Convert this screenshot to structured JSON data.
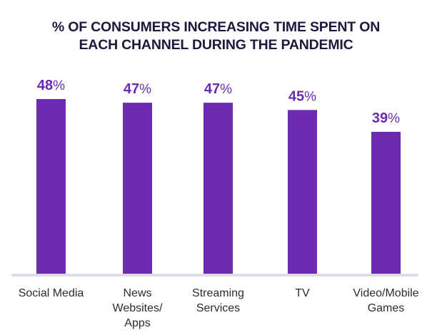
{
  "chart_data": {
    "type": "bar",
    "title": "% OF CONSUMERS INCREASING TIME SPENT ON EACH CHANNEL DURING THE PANDEMIC",
    "title_lines": [
      "% OF CONSUMERS INCREASING TIME SPENT ON",
      "EACH CHANNEL DURING THE PANDEMIC"
    ],
    "categories": [
      "Social Media",
      "News Websites/ Apps",
      "Streaming Services",
      "TV",
      "Video/Mobile Games"
    ],
    "category_lines": [
      [
        "Social Media"
      ],
      [
        "News",
        "Websites/",
        "Apps"
      ],
      [
        "Streaming",
        "Services"
      ],
      [
        "TV"
      ],
      [
        "Video/Mobile",
        "Games"
      ]
    ],
    "values": [
      48,
      47,
      47,
      45,
      39
    ],
    "value_labels": [
      "48",
      "47",
      "47",
      "45",
      "39"
    ],
    "value_suffix": "%",
    "xlabel": "",
    "ylabel": "",
    "ylim": [
      0,
      48
    ],
    "grid": false,
    "legend": "none",
    "colors": {
      "bar": "#6c2bb0",
      "value_label": "#6a2bb0",
      "title": "#1b1a3c",
      "baseline": "#dcdce2",
      "category_label": "#2b2b35"
    }
  }
}
